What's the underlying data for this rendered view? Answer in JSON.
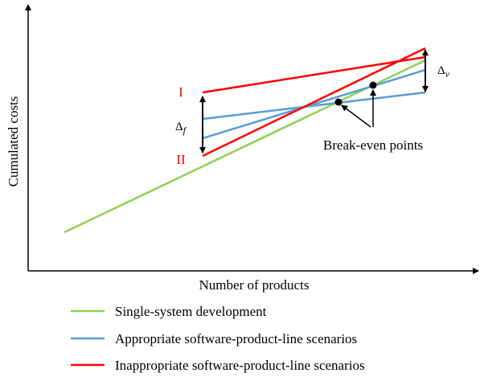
{
  "axes": {
    "ylabel": "Cumulated costs",
    "xlabel": "Number of products"
  },
  "labels": {
    "scenario_upper": "I",
    "scenario_lower": "II",
    "delta_fixed_symbol": "Δ",
    "delta_fixed_sub": "f",
    "delta_variable_symbol": "Δ",
    "delta_variable_sub": "v",
    "break_even": "Break-even points"
  },
  "legend": [
    {
      "label": "Single-system development",
      "color": "#92d050"
    },
    {
      "label": "Appropriate software-product-line scenarios",
      "color": "#5b9bd5"
    },
    {
      "label": "Inappropriate software-product-line scenarios",
      "color": "#ff0000"
    }
  ],
  "colors": {
    "single_system": "#92d050",
    "appropriate": "#5b9bd5",
    "inappropriate": "#ff0000",
    "scenario_label": "#ff0000",
    "axis": "#000000"
  }
}
